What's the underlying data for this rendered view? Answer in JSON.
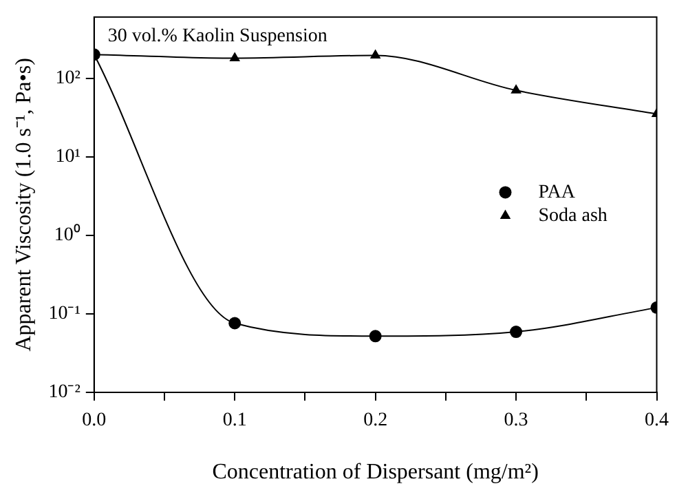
{
  "chart_data": {
    "type": "line",
    "xlabel": "Concentration of Dispersant (mg/m²)",
    "ylabel": "Apparent Viscosity (1.0 s⁻¹, Pa•s)",
    "annotations": [
      "30 vol.% Kaolin Suspension"
    ],
    "x": [
      0,
      0.1,
      0.2,
      0.3,
      0.4
    ],
    "series": [
      {
        "name": "PAA",
        "color": "#000000",
        "marker": "circle",
        "values": [
          200,
          0.076,
          0.052,
          0.059,
          0.12
        ]
      },
      {
        "name": "Soda ash",
        "color": "#000000",
        "marker": "triangle",
        "values": [
          200,
          180,
          195,
          70,
          35
        ]
      }
    ],
    "log": "y",
    "xlim": [
      0,
      0.4
    ],
    "xticks": [
      {
        "value": 0,
        "label": "0.0"
      },
      {
        "value": 0.05,
        "label": null
      },
      0.1,
      {
        "value": 0.15,
        "label": null
      },
      0.2,
      {
        "value": 0.25,
        "label": null
      },
      0.3,
      {
        "value": 0.35,
        "label": null
      },
      0.4
    ],
    "ylim": [
      0.01,
      600
    ],
    "yticks": [
      {
        "value": 0.01,
        "label": "10⁻²"
      },
      {
        "value": 0.1,
        "label": "10⁻¹"
      },
      {
        "value": 1,
        "label": "10⁰"
      },
      {
        "value": 10,
        "label": "10¹"
      },
      {
        "value": 100,
        "label": "10²"
      }
    ],
    "grid": false,
    "legend": "right",
    "line_style": "solid"
  }
}
